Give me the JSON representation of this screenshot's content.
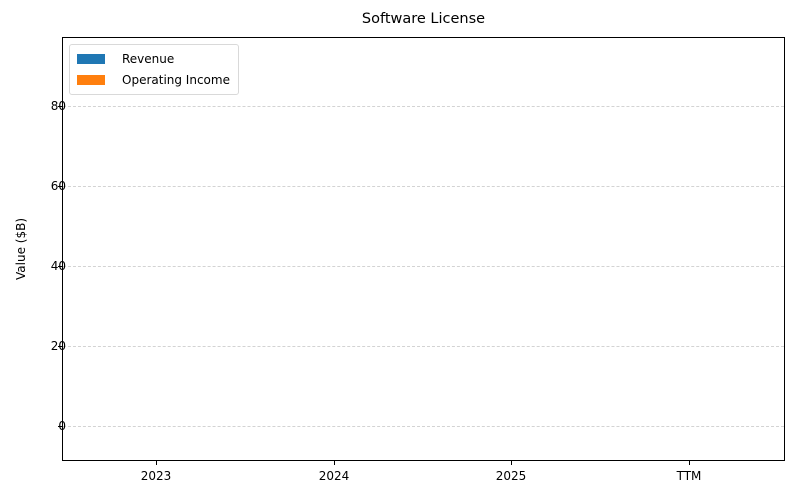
{
  "chart_data": {
    "type": "bar",
    "title": "Software License",
    "xlabel": "",
    "ylabel": "Value ($B)",
    "categories": [
      "2023",
      "2024",
      "2025",
      "TTM"
    ],
    "series": [
      {
        "name": "Revenue",
        "color": "#1f77b4",
        "values": [
          0,
          0,
          0,
          0
        ]
      },
      {
        "name": "Operating Income",
        "color": "#ff7f0e",
        "values": [
          0,
          0,
          0,
          0
        ]
      }
    ],
    "ylim": [
      -9,
      97
    ],
    "yticks": [
      0,
      20,
      40,
      60,
      80
    ],
    "grid": {
      "y": true,
      "style": "dashed",
      "color": "#d3d3d3"
    },
    "legend_position": "upper left"
  },
  "ui": {
    "ytick_labels": [
      "0",
      "20",
      "40",
      "60",
      "80"
    ],
    "xtick_labels": [
      "2023",
      "2024",
      "2025",
      "TTM"
    ],
    "legend": [
      "Revenue",
      "Operating Income"
    ]
  }
}
